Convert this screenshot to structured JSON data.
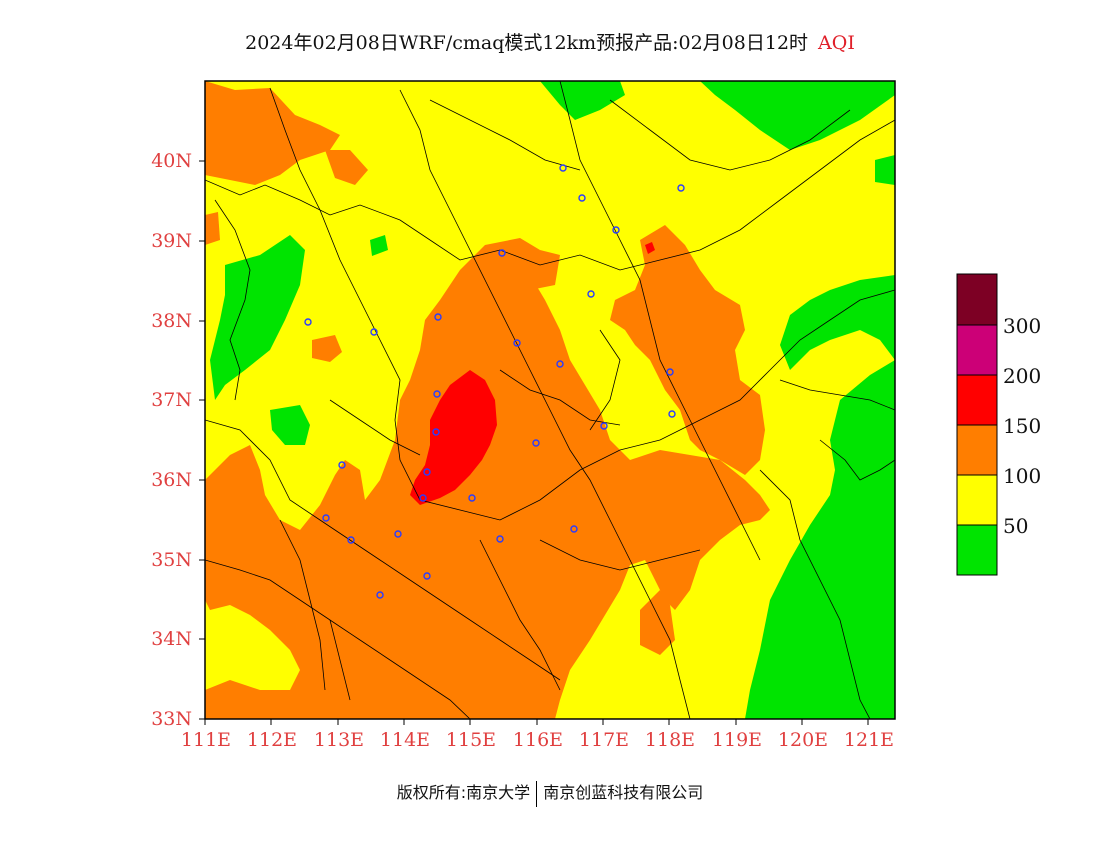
{
  "title": {
    "text": "2024年02月08日WRF/cmaq模式12km预报产品:02月08日12时",
    "tag": "AQI"
  },
  "map": {
    "lat_labels": [
      "40N",
      "39N",
      "38N",
      "37N",
      "36N",
      "35N",
      "34N",
      "33N"
    ],
    "lon_labels": [
      "111E",
      "112E",
      "113E",
      "114E",
      "115E",
      "116E",
      "117E",
      "118E",
      "119E",
      "120E",
      "121E"
    ],
    "extent": {
      "lon_min": 111,
      "lon_max": 121.4,
      "lat_min": 33,
      "lat_max": 41
    },
    "station_marker": "blue-circle-icon"
  },
  "legend": {
    "labels": [
      "300",
      "200",
      "150",
      "100",
      "50"
    ],
    "colors": {
      "level6": "#7d0024",
      "level5": "#cc0077",
      "level4": "#ff0000",
      "level3": "#ff7e00",
      "level2": "#ffff00",
      "level1": "#00e400"
    }
  },
  "footer": {
    "left": "版权所有:南京大学",
    "right": "南京创蓝科技有限公司"
  }
}
